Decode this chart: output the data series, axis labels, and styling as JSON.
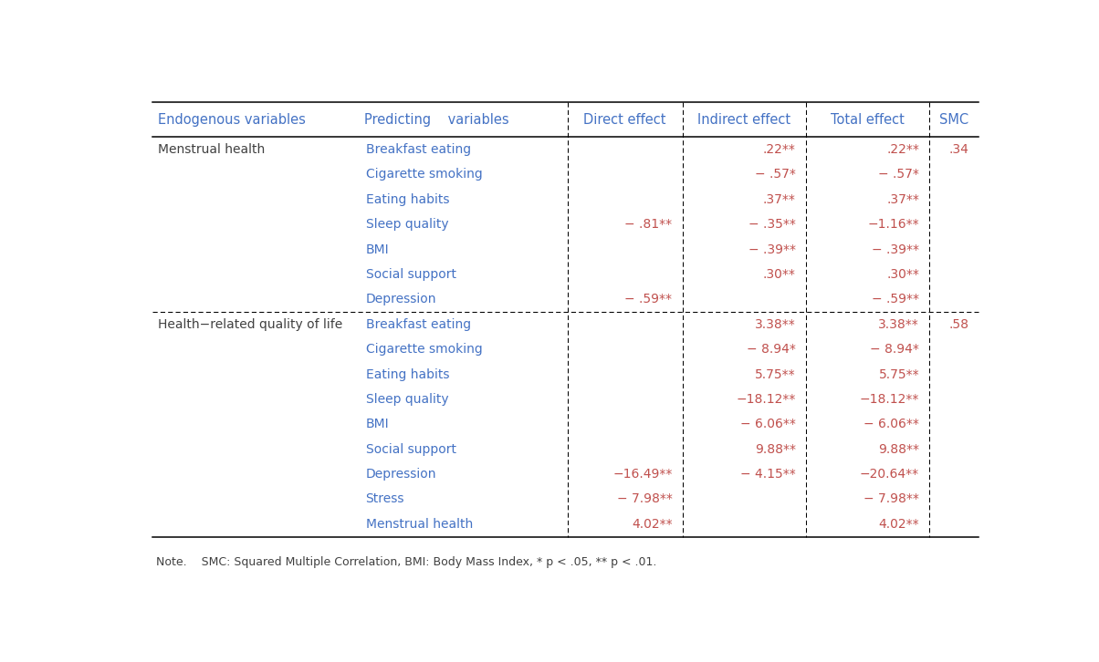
{
  "note": "Note.    SMC: Squared Multiple Correlation, BMI: Body Mass Index, * p < .05, ** p < .01.",
  "header": [
    "Endogenous variables",
    "Predicting    variables",
    "Direct effect",
    "Indirect effect",
    "Total effect",
    "SMC"
  ],
  "rows": [
    {
      "endogenous": "Menstrual health",
      "predicting": "Breakfast eating",
      "direct": "",
      "indirect": ".22**",
      "total": ".22**",
      "smc": ".34"
    },
    {
      "endogenous": "",
      "predicting": "Cigarette smoking",
      "direct": "",
      "indirect": "− .57*",
      "total": "− .57*",
      "smc": ""
    },
    {
      "endogenous": "",
      "predicting": "Eating habits",
      "direct": "",
      "indirect": ".37**",
      "total": ".37**",
      "smc": ""
    },
    {
      "endogenous": "",
      "predicting": "Sleep quality",
      "direct": "− .81**",
      "indirect": "− .35**",
      "total": "−1.16**",
      "smc": ""
    },
    {
      "endogenous": "",
      "predicting": "BMI",
      "direct": "",
      "indirect": "− .39**",
      "total": "− .39**",
      "smc": ""
    },
    {
      "endogenous": "",
      "predicting": "Social support",
      "direct": "",
      "indirect": ".30**",
      "total": ".30**",
      "smc": ""
    },
    {
      "endogenous": "",
      "predicting": "Depression",
      "direct": "− .59**",
      "indirect": "",
      "total": "− .59**",
      "smc": ""
    },
    {
      "endogenous": "Health−related quality of life",
      "predicting": "Breakfast eating",
      "direct": "",
      "indirect": "3.38**",
      "total": "3.38**",
      "smc": ".58"
    },
    {
      "endogenous": "",
      "predicting": "Cigarette smoking",
      "direct": "",
      "indirect": "− 8.94*",
      "total": "− 8.94*",
      "smc": ""
    },
    {
      "endogenous": "",
      "predicting": "Eating habits",
      "direct": "",
      "indirect": "5.75**",
      "total": "5.75**",
      "smc": ""
    },
    {
      "endogenous": "",
      "predicting": "Sleep quality",
      "direct": "",
      "indirect": "−18.12**",
      "total": "−18.12**",
      "smc": ""
    },
    {
      "endogenous": "",
      "predicting": "BMI",
      "direct": "",
      "indirect": "− 6.06**",
      "total": "− 6.06**",
      "smc": ""
    },
    {
      "endogenous": "",
      "predicting": "Social support",
      "direct": "",
      "indirect": "9.88**",
      "total": "9.88**",
      "smc": ""
    },
    {
      "endogenous": "",
      "predicting": "Depression",
      "direct": "−16.49**",
      "indirect": "− 4.15**",
      "total": "−20.64**",
      "smc": ""
    },
    {
      "endogenous": "",
      "predicting": "Stress",
      "direct": "− 7.98**",
      "indirect": "",
      "total": "− 7.98**",
      "smc": ""
    },
    {
      "endogenous": "",
      "predicting": "Menstrual health",
      "direct": "4.02**",
      "indirect": "",
      "total": "4.02**",
      "smc": ""
    }
  ],
  "section_separator_after_row": 7,
  "text_color_header": "#4472C4",
  "text_color_endogenous": "#404040",
  "text_color_predicting": "#4472C4",
  "text_color_values": "#C0504D",
  "text_color_note": "#404040",
  "bg_color": "#FFFFFF",
  "header_font_size": 10.5,
  "body_font_size": 10,
  "note_font_size": 9
}
